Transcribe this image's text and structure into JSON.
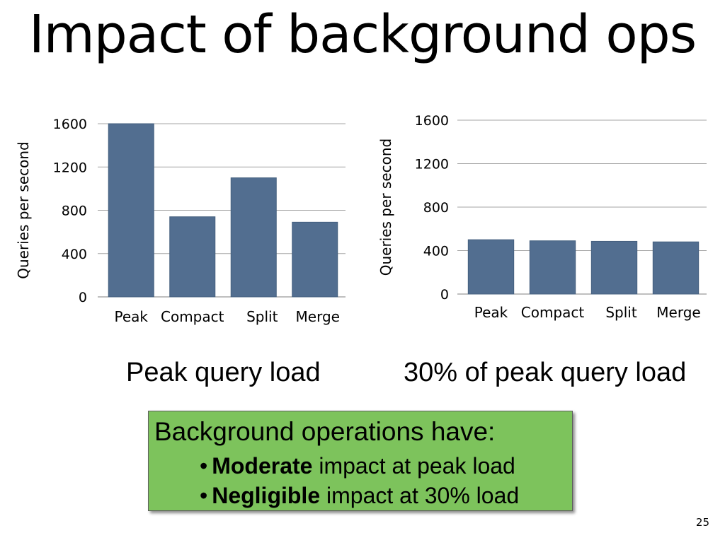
{
  "slide": {
    "title": "Impact of background ops",
    "page_number": "25"
  },
  "callout": {
    "heading": "Background operations have:",
    "bullets": [
      {
        "bold": "Moderate",
        "rest": " impact at peak load"
      },
      {
        "bold": "Negligible",
        "rest": " impact at 30% load"
      }
    ]
  },
  "colors": {
    "bar": "#526e90",
    "gridline": "#a6a6a6",
    "callout_bg": "#7dc35c"
  },
  "chart_data": [
    {
      "type": "bar",
      "title": "Peak query load",
      "xlabel": "",
      "ylabel": "Queries per second",
      "categories": [
        "Peak",
        "Compact",
        "Split",
        "Merge"
      ],
      "values": [
        1600,
        740,
        1100,
        690
      ],
      "ylim": [
        0,
        1600
      ],
      "yticks": [
        "0",
        "400",
        "800",
        "1200",
        "1600"
      ],
      "grid": true
    },
    {
      "type": "bar",
      "title": "30% of peak query load",
      "xlabel": "",
      "ylabel": "Queries per second",
      "categories": [
        "Peak",
        "Compact",
        "Split",
        "Merge"
      ],
      "values": [
        500,
        490,
        485,
        480
      ],
      "ylim": [
        0,
        1600
      ],
      "yticks": [
        "0",
        "400",
        "800",
        "1200",
        "1600"
      ],
      "grid": true
    }
  ]
}
